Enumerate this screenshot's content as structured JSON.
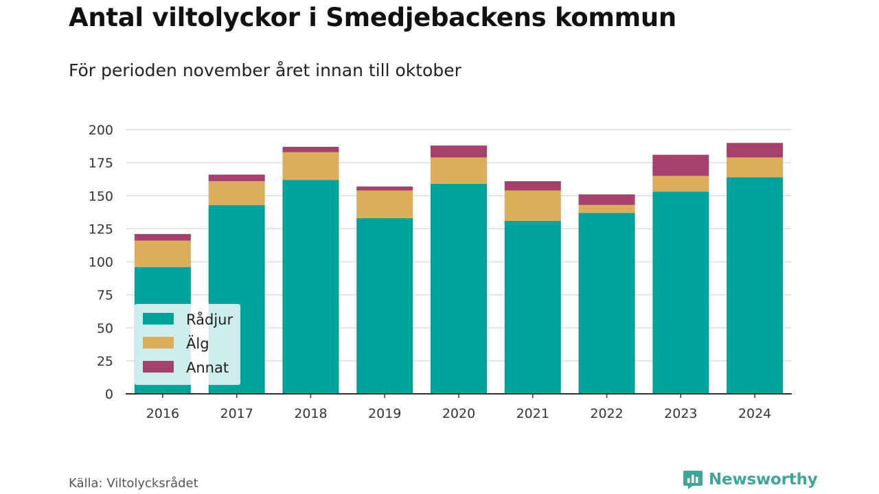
{
  "header": {
    "title": "Antal viltolyckor i Smedjebackens kommun",
    "subtitle": "För perioden november året innan till oktober"
  },
  "footer": {
    "source": "Källa: Viltolycksrådet",
    "brand": "Newsworthy",
    "brand_icon": "bar-chart-speech-bubble-icon"
  },
  "colors": {
    "Rådjur": "#00a39a",
    "Älg": "#dcad5a",
    "Annat": "#a5416b",
    "grid": "#dedede",
    "axis": "#333333",
    "brand": "#3fa79a"
  },
  "chart_data": {
    "type": "bar",
    "stacked": true,
    "categories": [
      "2016",
      "2017",
      "2018",
      "2019",
      "2020",
      "2021",
      "2022",
      "2023",
      "2024"
    ],
    "series": [
      {
        "name": "Rådjur",
        "values": [
          96,
          143,
          162,
          133,
          159,
          131,
          137,
          153,
          164
        ]
      },
      {
        "name": "Älg",
        "values": [
          20,
          18,
          21,
          21,
          20,
          23,
          6,
          12,
          15
        ]
      },
      {
        "name": "Annat",
        "values": [
          5,
          5,
          4,
          3,
          9,
          7,
          8,
          16,
          11
        ]
      }
    ],
    "ylim": [
      0,
      200
    ],
    "yticks": [
      0,
      25,
      50,
      75,
      100,
      125,
      150,
      175,
      200
    ],
    "grid": true,
    "legend_position": "bottom-left inside"
  }
}
